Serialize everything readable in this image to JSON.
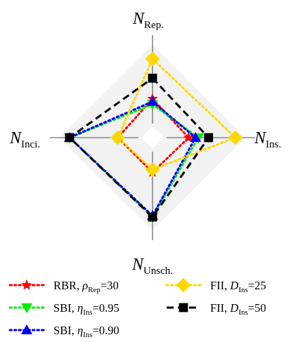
{
  "chart_data": {
    "type": "radar",
    "axes": [
      {
        "key": "N",
        "sub": "Rep."
      },
      {
        "key": "N",
        "sub": "Ins."
      },
      {
        "key": "N",
        "sub": "Unsch."
      },
      {
        "key": "N",
        "sub": "Inci."
      }
    ],
    "series": [
      {
        "name_parts": {
          "main": "RBR, ",
          "greek": "ρ",
          "sub": "Rep",
          "tail": "=30"
        },
        "color": "#ff0000",
        "marker": "star",
        "dash": "dotted",
        "values": {
          "rep": 0.36,
          "ins": 0.32,
          "unsch": 0.3,
          "inci": 0.3
        }
      },
      {
        "name_parts": {
          "main": "SBI, ",
          "greek": "η",
          "sub": "Ins",
          "tail": "=0.95"
        },
        "color": "#00ee00",
        "marker": "triangle-down",
        "dash": "dotted",
        "values": {
          "rep": 0.28,
          "ins": 0.46,
          "unsch": 0.95,
          "inci": 1.0
        }
      },
      {
        "name_parts": {
          "main": "SBI, ",
          "greek": "η",
          "sub": "Ins",
          "tail": "=0.90"
        },
        "color": "#0000ff",
        "marker": "triangle-up",
        "dash": "dotted",
        "values": {
          "rep": 0.32,
          "ins": 0.42,
          "unsch": 0.93,
          "inci": 1.0
        }
      },
      {
        "name_parts": {
          "main": "FII, ",
          "greek": "D",
          "sub": "Ins",
          "tail": "=25"
        },
        "color": "#ffd700",
        "marker": "diamond",
        "dash": "dotted",
        "values": {
          "rep": 0.94,
          "ins": 1.0,
          "unsch": 0.26,
          "inci": 0.3
        }
      },
      {
        "name_parts": {
          "main": "FII, ",
          "greek": "D",
          "sub": "Ins",
          "tail": "=50"
        },
        "color": "#000000",
        "marker": "square",
        "dash": "dashed",
        "values": {
          "rep": 0.66,
          "ins": 0.61,
          "unsch": 0.95,
          "inci": 1.0
        }
      }
    ],
    "grid": true,
    "legend": "bottom"
  }
}
